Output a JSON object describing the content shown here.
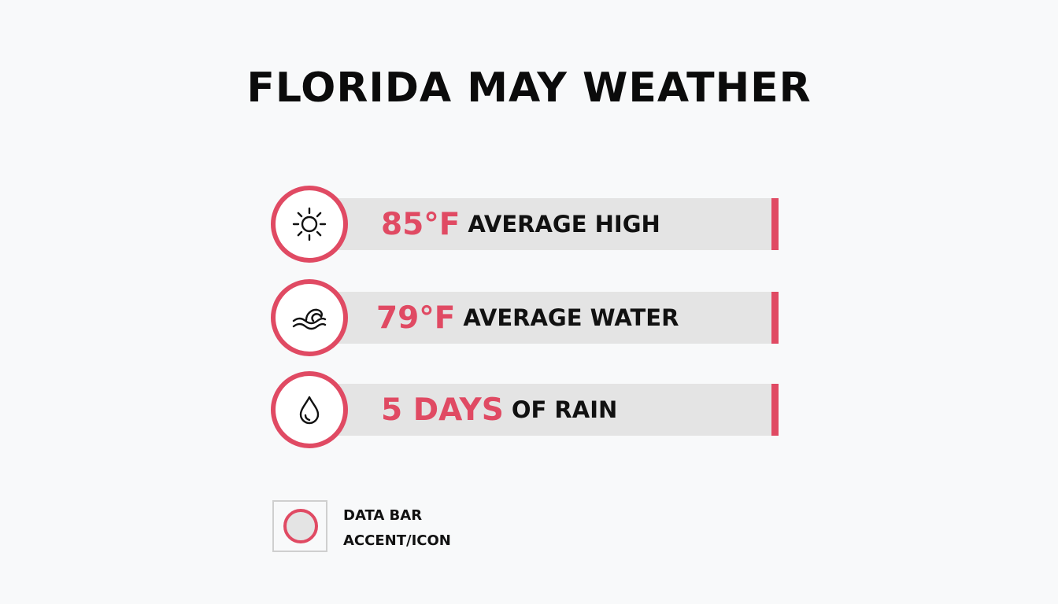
{
  "title": "FLORIDA MAY WEATHER",
  "colors": {
    "accent": "#e04a63",
    "bar": "#e4e4e4",
    "text": "#111111",
    "background": "#f8f9fa"
  },
  "stats": [
    {
      "icon": "sun-icon",
      "value": "85°F",
      "label": "AVERAGE HIGH"
    },
    {
      "icon": "wave-icon",
      "value": "79°F",
      "label": "AVERAGE WATER"
    },
    {
      "icon": "raindrop-icon",
      "value": "5 DAYS",
      "label": "OF RAIN"
    }
  ],
  "legend": {
    "line1": "DATA BAR",
    "line2": "ACCENT/ICON"
  }
}
